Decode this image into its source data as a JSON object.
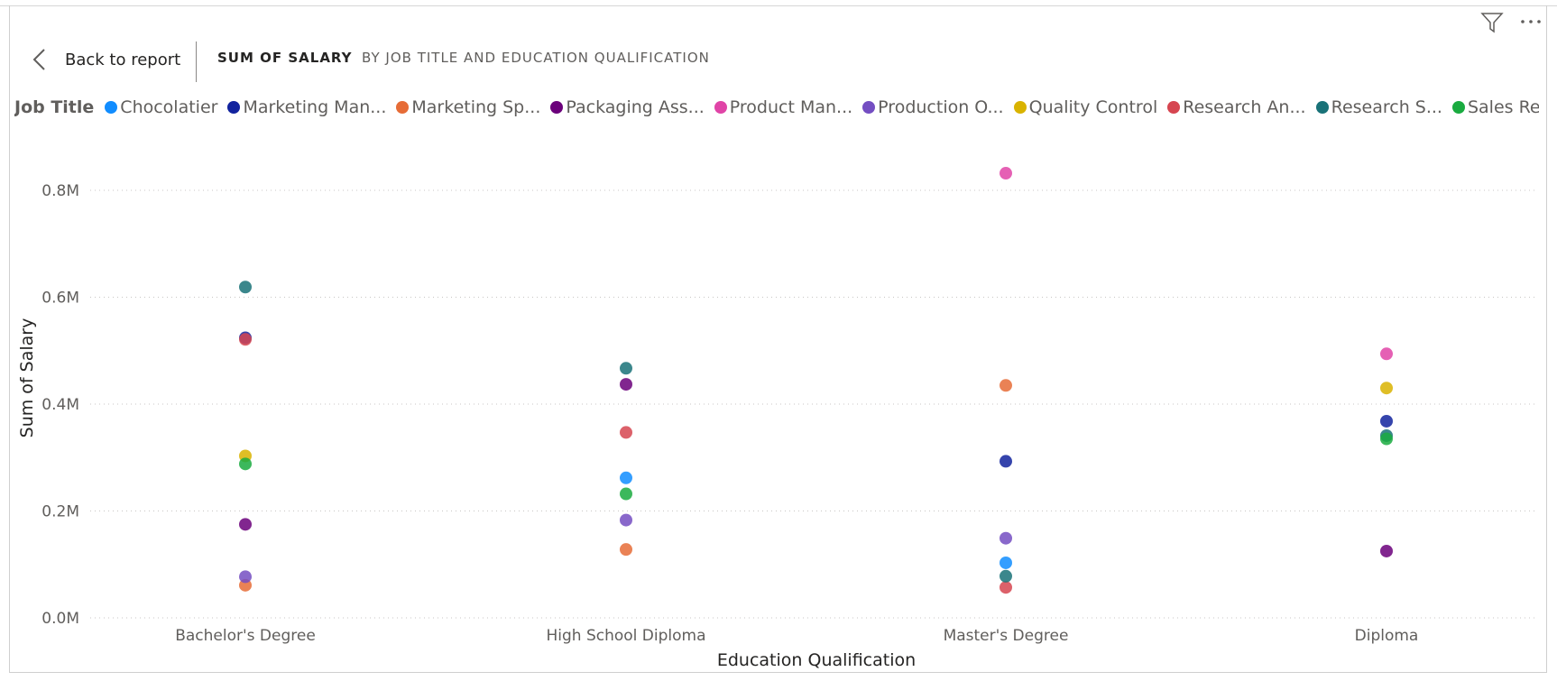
{
  "header": {
    "back_label": "Back to report",
    "title": "SUM OF SALARY",
    "subtitle": "BY JOB TITLE AND EDUCATION QUALIFICATION"
  },
  "icons": {
    "filter": "filter-icon",
    "more": "more-options-icon",
    "back": "chevron-left-icon"
  },
  "legend": {
    "title": "Job Title",
    "items": [
      {
        "label": "Chocolatier",
        "color": "#118DFF"
      },
      {
        "label": "Marketing Man...",
        "color": "#12239E"
      },
      {
        "label": "Marketing Sp...",
        "color": "#E66C37"
      },
      {
        "label": "Packaging Ass...",
        "color": "#6B007B"
      },
      {
        "label": "Product Man...",
        "color": "#E044A7"
      },
      {
        "label": "Production O...",
        "color": "#744EC2"
      },
      {
        "label": "Quality Control",
        "color": "#D9B300"
      },
      {
        "label": "Research An...",
        "color": "#D64550"
      },
      {
        "label": "Research S...",
        "color": "#197278"
      },
      {
        "label": "Sales Repres...",
        "color": "#1AAB40"
      }
    ]
  },
  "chart_data": {
    "type": "scatter",
    "xlabel": "Education Qualification",
    "ylabel": "Sum of Salary",
    "categories": [
      "Bachelor's Degree",
      "High School Diploma",
      "Master's Degree",
      "Diploma"
    ],
    "ylim": [
      0,
      0.85
    ],
    "yticks": [
      "0.0M",
      "0.2M",
      "0.4M",
      "0.6M",
      "0.8M"
    ],
    "ytick_values": [
      0,
      0.2,
      0.4,
      0.6,
      0.8
    ],
    "grid": true,
    "legend_position": "top-left",
    "series": [
      {
        "name": "Chocolatier",
        "values": [
          null,
          0.262,
          0.103,
          null
        ]
      },
      {
        "name": "Marketing Man...",
        "values": [
          0.524,
          null,
          0.293,
          0.368
        ]
      },
      {
        "name": "Marketing Sp...",
        "values": [
          0.061,
          0.128,
          0.435,
          null
        ]
      },
      {
        "name": "Packaging Ass...",
        "values": [
          0.175,
          0.437,
          null,
          0.125
        ]
      },
      {
        "name": "Product Man...",
        "values": [
          null,
          null,
          0.832,
          0.494
        ]
      },
      {
        "name": "Production O...",
        "values": [
          0.077,
          0.183,
          0.149,
          null
        ]
      },
      {
        "name": "Quality Control",
        "values": [
          0.303,
          null,
          null,
          0.43
        ]
      },
      {
        "name": "Research An...",
        "values": [
          0.521,
          0.347,
          0.057,
          null
        ]
      },
      {
        "name": "Research S...",
        "values": [
          0.619,
          0.467,
          0.078,
          0.341
        ]
      },
      {
        "name": "Sales Repres...",
        "values": [
          0.288,
          0.232,
          null,
          0.335
        ]
      }
    ]
  }
}
